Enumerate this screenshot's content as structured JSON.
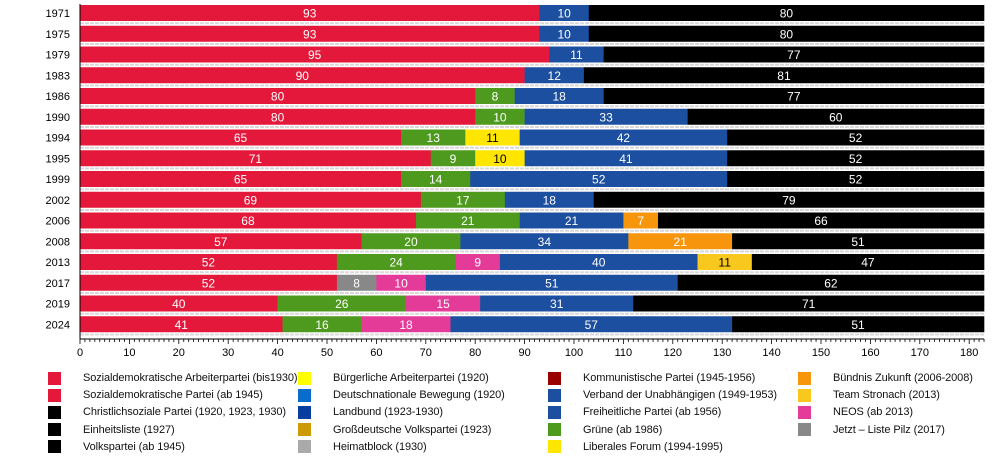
{
  "chart_data": {
    "type": "bar",
    "orientation": "horizontal-stacked",
    "title": "",
    "xlabel": "",
    "ylabel": "",
    "xlim": [
      0,
      183
    ],
    "xticks": [
      0,
      10,
      20,
      30,
      40,
      50,
      60,
      70,
      80,
      90,
      100,
      110,
      120,
      130,
      140,
      150,
      160,
      170,
      180
    ],
    "grid": false,
    "legend_position": "bottom",
    "parties": {
      "SDAP": {
        "name": "Sozialdemokratische Arbeiterpartei (bis1930)",
        "color": "#e3183a"
      },
      "SPOE": {
        "name": "Sozialdemokratische Partei (ab 1945)",
        "color": "#e3183a"
      },
      "CS": {
        "name": "Christlichsoziale Partei (1920, 1923, 1930)",
        "color": "#000000"
      },
      "EL": {
        "name": "Einheitsliste (1927)",
        "color": "#000000"
      },
      "OEVP": {
        "name": "Volkspartei (ab 1945)",
        "color": "#000000"
      },
      "BAP": {
        "name": "Bürgerliche Arbeiterpartei (1920)",
        "color": "#ffff00"
      },
      "DNB": {
        "name": "Deutschnationale Bewegung (1920)",
        "color": "#0a6ccb"
      },
      "LB": {
        "name": "Landbund (1923-1930)",
        "color": "#073ea0"
      },
      "GDVP": {
        "name": "Großdeutsche Volkspartei (1923)",
        "color": "#cc9a07"
      },
      "HB": {
        "name": "Heimatblock (1930)",
        "color": "#aaaaaa"
      },
      "KPOE": {
        "name": "Kommunistische Partei (1945-1956)",
        "color": "#990000"
      },
      "VDU": {
        "name": "Verband der Unabhängigen (1949-1953)",
        "color": "#1c4f9f"
      },
      "FPOE": {
        "name": "Freiheitliche Partei (ab 1956)",
        "color": "#1c4f9f"
      },
      "GRUENE": {
        "name": "Grüne (ab 1986)",
        "color": "#4e9a1e"
      },
      "LIF": {
        "name": "Liberales Forum (1994-1995)",
        "color": "#ffe600"
      },
      "BZOE": {
        "name": "Bündnis Zukunft (2006-2008)",
        "color": "#f7950c"
      },
      "TS": {
        "name": "Team Stronach (2013)",
        "color": "#f9c81e"
      },
      "NEOS": {
        "name": "NEOS (ab 2013)",
        "color": "#e43b99"
      },
      "PILZ": {
        "name": "Jetzt – Liste Pilz (2017)",
        "color": "#888888"
      }
    },
    "legend_columns": [
      [
        "SDAP",
        "SPOE",
        "CS",
        "EL",
        "OEVP"
      ],
      [
        "BAP",
        "DNB",
        "LB",
        "GDVP",
        "HB"
      ],
      [
        "KPOE",
        "VDU",
        "FPOE",
        "GRUENE",
        "LIF"
      ],
      [
        "BZOE",
        "TS",
        "NEOS",
        "PILZ"
      ]
    ],
    "rows": [
      {
        "year": "1971",
        "segments": [
          {
            "party": "SPOE",
            "value": 93
          },
          {
            "party": "FPOE",
            "value": 10
          },
          {
            "party": "OEVP",
            "value": 80
          }
        ]
      },
      {
        "year": "1975",
        "segments": [
          {
            "party": "SPOE",
            "value": 93
          },
          {
            "party": "FPOE",
            "value": 10
          },
          {
            "party": "OEVP",
            "value": 80
          }
        ]
      },
      {
        "year": "1979",
        "segments": [
          {
            "party": "SPOE",
            "value": 95
          },
          {
            "party": "FPOE",
            "value": 11
          },
          {
            "party": "OEVP",
            "value": 77
          }
        ]
      },
      {
        "year": "1983",
        "segments": [
          {
            "party": "SPOE",
            "value": 90
          },
          {
            "party": "FPOE",
            "value": 12
          },
          {
            "party": "OEVP",
            "value": 81
          }
        ]
      },
      {
        "year": "1986",
        "segments": [
          {
            "party": "SPOE",
            "value": 80
          },
          {
            "party": "GRUENE",
            "value": 8
          },
          {
            "party": "FPOE",
            "value": 18
          },
          {
            "party": "OEVP",
            "value": 77
          }
        ]
      },
      {
        "year": "1990",
        "segments": [
          {
            "party": "SPOE",
            "value": 80
          },
          {
            "party": "GRUENE",
            "value": 10
          },
          {
            "party": "FPOE",
            "value": 33
          },
          {
            "party": "OEVP",
            "value": 60
          }
        ]
      },
      {
        "year": "1994",
        "segments": [
          {
            "party": "SPOE",
            "value": 65
          },
          {
            "party": "GRUENE",
            "value": 13
          },
          {
            "party": "LIF",
            "value": 11
          },
          {
            "party": "FPOE",
            "value": 42
          },
          {
            "party": "OEVP",
            "value": 52
          }
        ]
      },
      {
        "year": "1995",
        "segments": [
          {
            "party": "SPOE",
            "value": 71
          },
          {
            "party": "GRUENE",
            "value": 9
          },
          {
            "party": "LIF",
            "value": 10
          },
          {
            "party": "FPOE",
            "value": 41
          },
          {
            "party": "OEVP",
            "value": 52
          }
        ]
      },
      {
        "year": "1999",
        "segments": [
          {
            "party": "SPOE",
            "value": 65
          },
          {
            "party": "GRUENE",
            "value": 14
          },
          {
            "party": "FPOE",
            "value": 52
          },
          {
            "party": "OEVP",
            "value": 52
          }
        ]
      },
      {
        "year": "2002",
        "segments": [
          {
            "party": "SPOE",
            "value": 69
          },
          {
            "party": "GRUENE",
            "value": 17
          },
          {
            "party": "FPOE",
            "value": 18
          },
          {
            "party": "OEVP",
            "value": 79
          }
        ]
      },
      {
        "year": "2006",
        "segments": [
          {
            "party": "SPOE",
            "value": 68
          },
          {
            "party": "GRUENE",
            "value": 21
          },
          {
            "party": "FPOE",
            "value": 21
          },
          {
            "party": "BZOE",
            "value": 7
          },
          {
            "party": "OEVP",
            "value": 66
          }
        ]
      },
      {
        "year": "2008",
        "segments": [
          {
            "party": "SPOE",
            "value": 57
          },
          {
            "party": "GRUENE",
            "value": 20
          },
          {
            "party": "FPOE",
            "value": 34
          },
          {
            "party": "BZOE",
            "value": 21
          },
          {
            "party": "OEVP",
            "value": 51
          }
        ]
      },
      {
        "year": "2013",
        "segments": [
          {
            "party": "SPOE",
            "value": 52
          },
          {
            "party": "GRUENE",
            "value": 24
          },
          {
            "party": "NEOS",
            "value": 9
          },
          {
            "party": "FPOE",
            "value": 40
          },
          {
            "party": "TS",
            "value": 11
          },
          {
            "party": "OEVP",
            "value": 47
          }
        ]
      },
      {
        "year": "2017",
        "segments": [
          {
            "party": "SPOE",
            "value": 52
          },
          {
            "party": "PILZ",
            "value": 8
          },
          {
            "party": "NEOS",
            "value": 10
          },
          {
            "party": "FPOE",
            "value": 51
          },
          {
            "party": "OEVP",
            "value": 62
          }
        ]
      },
      {
        "year": "2019",
        "segments": [
          {
            "party": "SPOE",
            "value": 40
          },
          {
            "party": "GRUENE",
            "value": 26
          },
          {
            "party": "NEOS",
            "value": 15
          },
          {
            "party": "FPOE",
            "value": 31
          },
          {
            "party": "OEVP",
            "value": 71
          }
        ]
      },
      {
        "year": "2024",
        "segments": [
          {
            "party": "SPOE",
            "value": 41
          },
          {
            "party": "GRUENE",
            "value": 16
          },
          {
            "party": "NEOS",
            "value": 18
          },
          {
            "party": "FPOE",
            "value": 57
          },
          {
            "party": "OEVP",
            "value": 51
          }
        ]
      }
    ],
    "dark_label_parties": [
      "LIF",
      "TS"
    ]
  }
}
